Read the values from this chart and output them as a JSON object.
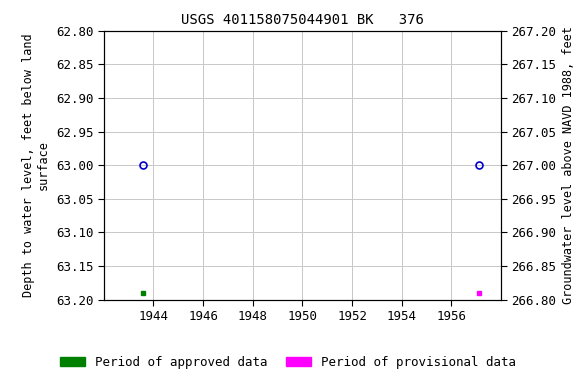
{
  "title": "USGS 401158075044901 BK   376",
  "ylabel_left": "Depth to water level, feet below land\nsurface",
  "ylabel_right": "Groundwater level above NAVD 1988, feet",
  "xlim": [
    1942,
    1958
  ],
  "ylim_left": [
    62.8,
    63.2
  ],
  "ylim_right": [
    266.8,
    267.2
  ],
  "xticks": [
    1944,
    1946,
    1948,
    1950,
    1952,
    1954,
    1956
  ],
  "yticks_left": [
    62.8,
    62.85,
    62.9,
    62.95,
    63.0,
    63.05,
    63.1,
    63.15,
    63.2
  ],
  "yticks_right": [
    266.8,
    266.85,
    266.9,
    266.95,
    267.0,
    267.05,
    267.1,
    267.15,
    267.2
  ],
  "approved_points_x": [
    1943.6
  ],
  "approved_points_y": [
    63.0
  ],
  "provisional_points_x": [
    1957.1
  ],
  "provisional_points_y": [
    63.0
  ],
  "approved_squares_x": [
    1943.6
  ],
  "approved_squares_y": [
    63.19
  ],
  "provisional_squares_x": [
    1957.1
  ],
  "provisional_squares_y": [
    63.19
  ],
  "approved_color": "#008000",
  "provisional_color": "#ff00ff",
  "circle_color": "#0000cd",
  "background_color": "#ffffff",
  "plot_bg_color": "#ffffff",
  "grid_color": "#c8c8c8",
  "title_fontsize": 10,
  "label_fontsize": 8.5,
  "tick_fontsize": 9,
  "legend_fontsize": 9
}
